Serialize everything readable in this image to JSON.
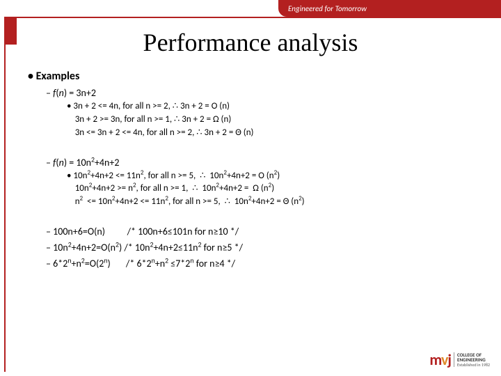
{
  "header": {
    "tagline": "Engineered for Tomorrow"
  },
  "title": "Performance analysis",
  "content": {
    "heading": "Examples",
    "ex1": {
      "fn": "f(n) = 3n+2",
      "line1": "3n + 2 <= 4n, for all n >= 2,  ∴ 3n + 2 = O (n)",
      "line2": "3n + 2 >= 3n, for all n >= 1,  ∴ 3n + 2 = Ω (n)",
      "line3": "3n <= 3n + 2 <= 4n, for all n >= 2,  ∴  3n + 2 =  Θ (n)"
    },
    "ex2": {
      "fn": "f(n) = 10n²+4n+2",
      "line1": "10n²+4n+2 <= 11n², for all n >= 5,  ∴  10n²+4n+2 = O (n²)",
      "line2": "10n²+4n+2 >= n², for all n >= 1,  ∴  10n²+4n+2 =  Ω (n²)",
      "line3": "n²  <= 10n²+4n+2 <= 11n², for all n >= 5,  ∴  10n²+4n+2 = Θ (n²)"
    },
    "ex3": "100n+6=O(n)          /* 100n+6≤101n for n≥10 */",
    "ex4": "10n²+4n+2=O(n²) /* 10n²+4n+2≤11n² for n≥5 */",
    "ex5": "6*2ⁿ+n²=O(2ⁿ)       /* 6*2ⁿ+n² ≤7*2ⁿ for n≥4 */"
  },
  "logo": {
    "mark_m": "m",
    "mark_v": "v",
    "mark_j": "j",
    "t1": "COLLEGE OF",
    "t2": "ENGINEERING",
    "t3": "Established in 1982"
  },
  "colors": {
    "brand_red": "#b32020",
    "brand_orange": "#e08a2a",
    "text": "#000000",
    "bg": "#ffffff"
  }
}
